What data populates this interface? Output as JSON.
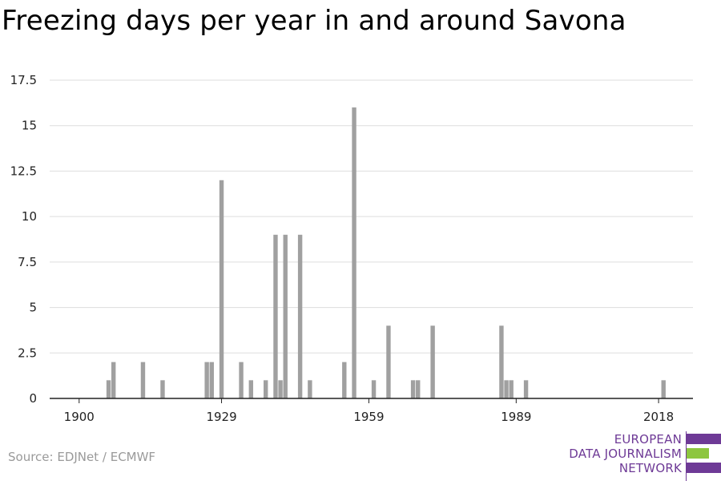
{
  "title": "Freezing days per year in and around Savona",
  "source": "Source: EDJNet / ECMWF",
  "logo": {
    "line1": "EUROPEAN",
    "line2": "DATA JOURNALISM",
    "line3": "NETWORK",
    "purple": "#6e3a96",
    "green": "#8dc63f"
  },
  "colors": {
    "bar": "#a0a0a0",
    "grid": "#dddddd",
    "axis": "#222222"
  },
  "chart_data": {
    "type": "bar",
    "title": "Freezing days per year in and around Savona",
    "xlabel": "",
    "ylabel": "",
    "xlim": [
      1894,
      2025
    ],
    "ylim": [
      0,
      17.5
    ],
    "grid": true,
    "x_ticks": [
      1900,
      1929,
      1959,
      1989,
      2018
    ],
    "y_ticks": [
      {
        "value": 0,
        "label": "0"
      },
      {
        "value": 2.5,
        "label": "2.5"
      },
      {
        "value": 5,
        "label": "5"
      },
      {
        "value": 7.5,
        "label": "7.5"
      },
      {
        "value": 10,
        "label": "10"
      },
      {
        "value": 12.5,
        "label": "12.5"
      },
      {
        "value": 15,
        "label": "15"
      },
      {
        "value": 17.5,
        "label": "17.5"
      }
    ],
    "years": [
      1906,
      1907,
      1913,
      1917,
      1926,
      1927,
      1929,
      1933,
      1935,
      1938,
      1940,
      1941,
      1942,
      1945,
      1947,
      1954,
      1956,
      1960,
      1963,
      1968,
      1969,
      1972,
      1986,
      1987,
      1988,
      1991,
      2019
    ],
    "values": [
      1,
      2,
      2,
      1,
      2,
      2,
      12,
      2,
      1,
      1,
      9,
      1,
      9,
      9,
      1,
      2,
      16,
      1,
      4,
      1,
      1,
      4,
      4,
      1,
      1,
      1,
      1
    ]
  }
}
